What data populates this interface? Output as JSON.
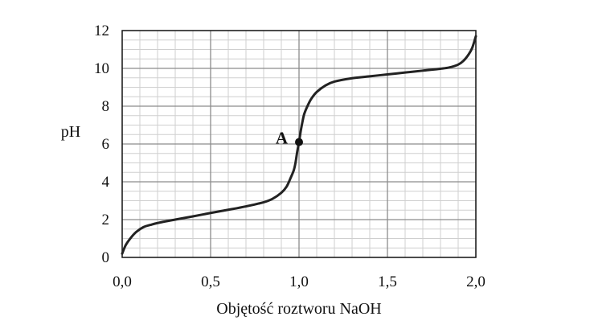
{
  "chart_data": {
    "type": "line",
    "title": "",
    "xlabel": "Objętość roztworu NaOH",
    "ylabel": "pH",
    "xlim": [
      0,
      2
    ],
    "ylim": [
      0,
      12
    ],
    "x_ticks": [
      "0,0",
      "0,5",
      "1,0",
      "1,5",
      "2,0"
    ],
    "y_ticks": [
      "0",
      "2",
      "4",
      "6",
      "8",
      "10",
      "12"
    ],
    "x_tick_values": [
      0,
      0.5,
      1,
      1.5,
      2
    ],
    "y_tick_values": [
      0,
      2,
      4,
      6,
      8,
      10,
      12
    ],
    "grid": true,
    "legend": "none",
    "colors": {
      "line": "#222222",
      "major_grid": "#8c8c8c",
      "minor_grid": "#cfcfcf",
      "frame": "#111111"
    },
    "series": [
      {
        "x": [
          0.0,
          0.02,
          0.05,
          0.08,
          0.12,
          0.16,
          0.2,
          0.3,
          0.4,
          0.5,
          0.6,
          0.7,
          0.8,
          0.85,
          0.9,
          0.93,
          0.95,
          0.97,
          0.98,
          0.99,
          1.0,
          1.01,
          1.02,
          1.03,
          1.05,
          1.07,
          1.1,
          1.15,
          1.2,
          1.3,
          1.4,
          1.5,
          1.6,
          1.7,
          1.8,
          1.85,
          1.9,
          1.93,
          1.96,
          1.98,
          2.0
        ],
        "y": [
          0.2,
          0.65,
          1.05,
          1.35,
          1.6,
          1.72,
          1.82,
          2.0,
          2.17,
          2.35,
          2.52,
          2.7,
          2.92,
          3.1,
          3.42,
          3.75,
          4.15,
          4.6,
          5.0,
          5.6,
          6.1,
          6.7,
          7.2,
          7.6,
          8.05,
          8.4,
          8.75,
          9.1,
          9.3,
          9.48,
          9.58,
          9.68,
          9.78,
          9.88,
          9.98,
          10.05,
          10.2,
          10.4,
          10.75,
          11.1,
          11.7
        ]
      }
    ],
    "annotations": [
      {
        "label": "A",
        "x": 1.0,
        "y": 6.1
      }
    ]
  }
}
